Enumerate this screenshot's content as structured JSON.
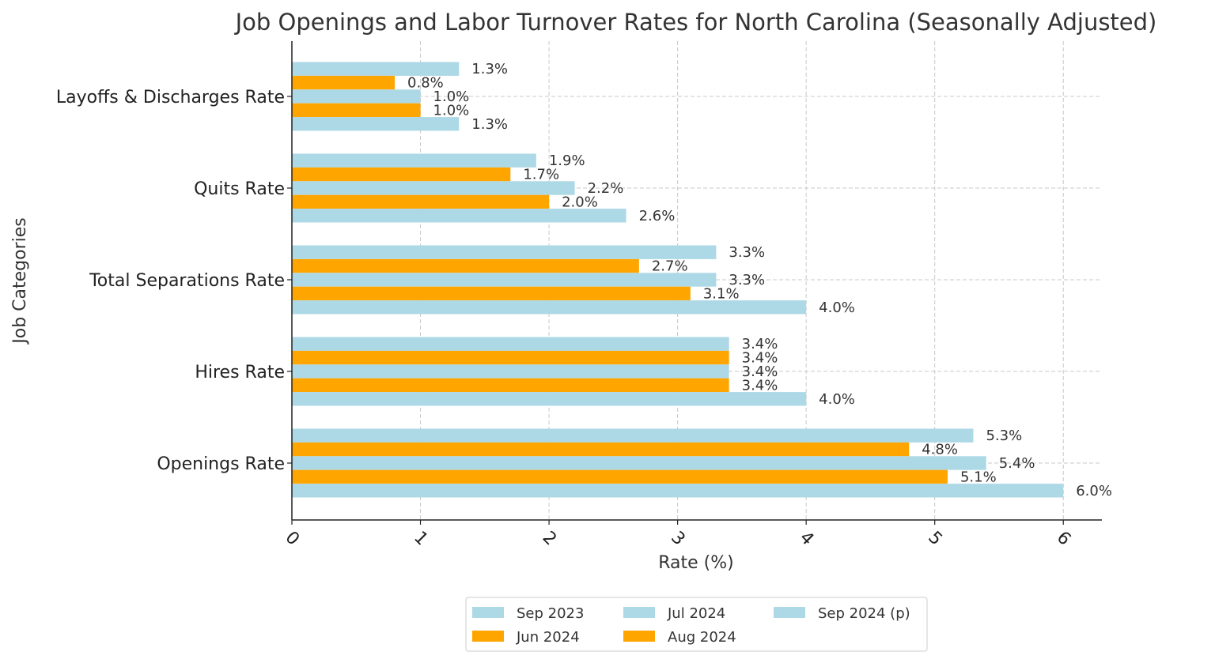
{
  "chart_data": {
    "type": "bar",
    "orientation": "horizontal",
    "title": "Job Openings and Labor Turnover Rates for North Carolina (Seasonally Adjusted)",
    "xlabel": "Rate (%)",
    "ylabel": "Job Categories",
    "xlim": [
      0,
      6.3
    ],
    "xticks": [
      "0",
      "1",
      "2",
      "3",
      "4",
      "5",
      "6"
    ],
    "grid": true,
    "legend_position": "bottom-center",
    "categories": [
      "Openings Rate",
      "Hires Rate",
      "Total Separations Rate",
      "Quits Rate",
      "Layoffs & Discharges Rate"
    ],
    "series": [
      {
        "name": "Sep 2023",
        "color": "#add8e6",
        "values": [
          5.3,
          3.4,
          3.3,
          1.9,
          1.3
        ],
        "labels": [
          "5.3%",
          "3.4%",
          "3.3%",
          "1.9%",
          "1.3%"
        ]
      },
      {
        "name": "Jun 2024",
        "color": "#ffa500",
        "values": [
          4.8,
          3.4,
          2.7,
          1.7,
          0.8
        ],
        "labels": [
          "4.8%",
          "3.4%",
          "2.7%",
          "1.7%",
          "0.8%"
        ]
      },
      {
        "name": "Jul 2024",
        "color": "#add8e6",
        "values": [
          5.4,
          3.4,
          3.3,
          2.2,
          1.0
        ],
        "labels": [
          "5.4%",
          "3.4%",
          "3.3%",
          "2.2%",
          "1.0%"
        ]
      },
      {
        "name": "Aug 2024",
        "color": "#ffa500",
        "values": [
          5.1,
          3.4,
          3.1,
          2.0,
          1.0
        ],
        "labels": [
          "5.1%",
          "3.4%",
          "3.1%",
          "2.0%",
          "1.0%"
        ]
      },
      {
        "name": "Sep 2024 (p)",
        "color": "#add8e6",
        "values": [
          6.0,
          4.0,
          4.0,
          2.6,
          1.3
        ],
        "labels": [
          "6.0%",
          "4.0%",
          "4.0%",
          "2.6%",
          "1.3%"
        ]
      }
    ]
  }
}
